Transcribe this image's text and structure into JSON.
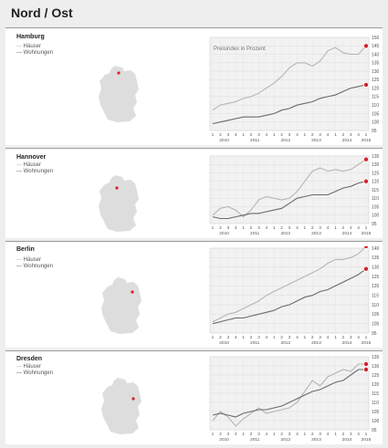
{
  "page": {
    "title": "Nord / Ost"
  },
  "colors": {
    "haeuser": "#b5b5b5",
    "wohnungen": "#6a6a6a",
    "marker": "#d4202c",
    "map": "#dddddd"
  },
  "legend": {
    "haeuser": "Häuser",
    "wohnungen": "Wohnungen"
  },
  "chart_note": "Preisindex in Prozent",
  "chart_data": [
    {
      "type": "line",
      "title": "Hamburg",
      "ylim": [
        95,
        150
      ],
      "yticks": [
        95,
        100,
        105,
        110,
        115,
        120,
        125,
        130,
        135,
        140,
        145,
        150
      ],
      "xlabels": [
        "1",
        "2",
        "3",
        "4",
        "1",
        "2",
        "3",
        "4",
        "1",
        "2",
        "3",
        "4",
        "1",
        "2",
        "3",
        "4",
        "1",
        "2",
        "3",
        "4",
        "1"
      ],
      "years": [
        "2010",
        "2011",
        "2012",
        "2013",
        "2014",
        "2015"
      ],
      "series": [
        {
          "name": "Häuser",
          "values": [
            107,
            110,
            111,
            112,
            114,
            115,
            117,
            120,
            123,
            127,
            132,
            135,
            135,
            133,
            136,
            142,
            144,
            141,
            140,
            140,
            145
          ]
        },
        {
          "name": "Wohnungen",
          "values": [
            99,
            100,
            101,
            102,
            103,
            103,
            103,
            104,
            105,
            107,
            108,
            110,
            111,
            112,
            114,
            115,
            116,
            118,
            120,
            121,
            122
          ]
        }
      ]
    },
    {
      "type": "line",
      "title": "Hannover",
      "ylim": [
        95,
        135
      ],
      "yticks": [
        95,
        100,
        105,
        110,
        115,
        120,
        125,
        130,
        135
      ],
      "xlabels": [
        "1",
        "2",
        "3",
        "4",
        "1",
        "2",
        "3",
        "4",
        "1",
        "2",
        "3",
        "4",
        "1",
        "2",
        "3",
        "4",
        "1",
        "2",
        "3",
        "4",
        "1"
      ],
      "years": [
        "2010",
        "2011",
        "2012",
        "2013",
        "2014",
        "2015"
      ],
      "series": [
        {
          "name": "Häuser",
          "values": [
            100,
            104,
            105,
            103,
            99,
            103,
            109,
            111,
            110,
            109,
            110,
            114,
            120,
            126,
            128,
            126,
            127,
            126,
            127,
            130,
            133
          ]
        },
        {
          "name": "Wohnungen",
          "values": [
            99,
            98,
            98,
            99,
            100,
            101,
            101,
            102,
            103,
            104,
            107,
            110,
            111,
            112,
            112,
            112,
            114,
            116,
            117,
            119,
            120
          ]
        }
      ]
    },
    {
      "type": "line",
      "title": "Berlin",
      "ylim": [
        95,
        140
      ],
      "yticks": [
        95,
        100,
        105,
        110,
        115,
        120,
        125,
        130,
        135,
        140
      ],
      "xlabels": [
        "1",
        "2",
        "3",
        "4",
        "1",
        "2",
        "3",
        "4",
        "1",
        "2",
        "3",
        "4",
        "1",
        "2",
        "3",
        "4",
        "1",
        "2",
        "3",
        "4",
        "1"
      ],
      "years": [
        "2010",
        "2011",
        "2012",
        "2013",
        "2014",
        "2015"
      ],
      "series": [
        {
          "name": "Häuser",
          "values": [
            101,
            103,
            105,
            106,
            108,
            110,
            112,
            115,
            117,
            119,
            121,
            123,
            125,
            127,
            129,
            132,
            134,
            134,
            135,
            137,
            141
          ]
        },
        {
          "name": "Wohnungen",
          "values": [
            100,
            101,
            102,
            103,
            103,
            104,
            105,
            106,
            107,
            109,
            110,
            112,
            114,
            115,
            117,
            118,
            120,
            122,
            124,
            126,
            129
          ]
        }
      ]
    },
    {
      "type": "line",
      "title": "Dresden",
      "ylim": [
        95,
        135
      ],
      "yticks": [
        95,
        100,
        105,
        110,
        115,
        120,
        125,
        130,
        135
      ],
      "xlabels": [
        "1",
        "2",
        "3",
        "4",
        "1",
        "2",
        "3",
        "4",
        "1",
        "2",
        "3",
        "4",
        "1",
        "2",
        "3",
        "4",
        "1",
        "2",
        "3",
        "4",
        "1"
      ],
      "years": [
        "2010",
        "2011",
        "2012",
        "2013",
        "2014",
        "2015"
      ],
      "series": [
        {
          "name": "Häuser",
          "values": [
            100,
            105,
            102,
            97,
            101,
            104,
            107,
            104,
            105,
            106,
            107,
            110,
            116,
            122,
            119,
            124,
            126,
            128,
            127,
            131,
            131
          ]
        },
        {
          "name": "Wohnungen",
          "values": [
            103,
            104,
            103,
            102,
            104,
            105,
            106,
            106,
            107,
            108,
            110,
            112,
            114,
            116,
            117,
            119,
            121,
            122,
            125,
            128,
            128
          ]
        }
      ]
    }
  ]
}
